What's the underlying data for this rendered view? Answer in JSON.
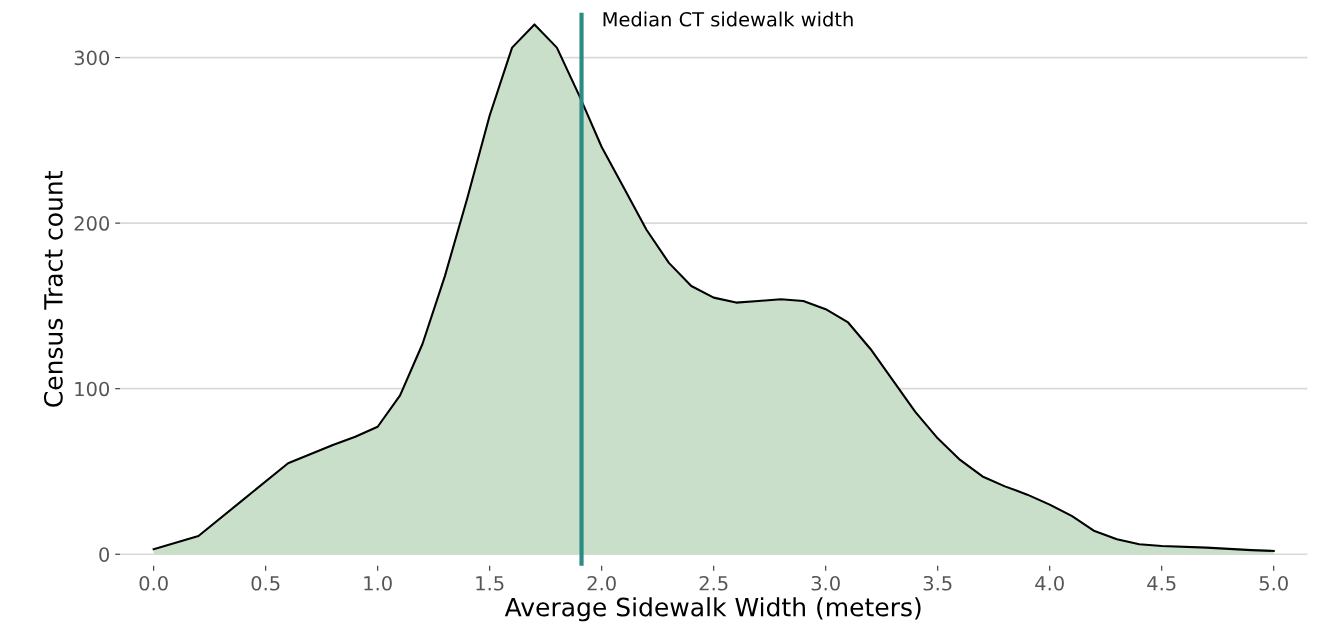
{
  "chart_data": {
    "type": "area",
    "xlabel": "Average Sidewalk Width (meters)",
    "ylabel": "Census Tract count",
    "x": [
      0.0,
      0.2,
      0.4,
      0.6,
      0.8,
      0.9,
      1.0,
      1.1,
      1.2,
      1.3,
      1.4,
      1.5,
      1.6,
      1.7,
      1.8,
      1.9,
      2.0,
      2.1,
      2.2,
      2.3,
      2.4,
      2.5,
      2.6,
      2.7,
      2.8,
      2.9,
      3.0,
      3.1,
      3.2,
      3.3,
      3.4,
      3.5,
      3.6,
      3.7,
      3.8,
      3.9,
      4.0,
      4.1,
      4.2,
      4.3,
      4.4,
      4.5,
      4.7,
      4.9,
      5.0
    ],
    "series": [
      {
        "color": "#c9dfca",
        "values": [
          3,
          11,
          33,
          55,
          66,
          71,
          77,
          96,
          127,
          168,
          215,
          265,
          306,
          320,
          306,
          277,
          246,
          221,
          196,
          176,
          162,
          155,
          152,
          153,
          154,
          153,
          148,
          140,
          124,
          105,
          86,
          70,
          57,
          47,
          41,
          36,
          30,
          23,
          14,
          9,
          6,
          5,
          4,
          2.5,
          2
        ]
      }
    ],
    "xlim": [
      -0.15,
      5.15
    ],
    "ylim": [
      -7,
      327
    ],
    "xticks": [
      {
        "value": 0,
        "label": "0.0"
      },
      {
        "value": 0.5,
        "label": "0.5"
      },
      {
        "value": 1,
        "label": "1.0"
      },
      {
        "value": 1.5,
        "label": "1.5"
      },
      {
        "value": 2,
        "label": "2.0"
      },
      {
        "value": 2.5,
        "label": "2.5"
      },
      {
        "value": 3,
        "label": "3.0"
      },
      {
        "value": 3.5,
        "label": "3.5"
      },
      {
        "value": 4,
        "label": "4.0"
      },
      {
        "value": 4.5,
        "label": "4.5"
      },
      {
        "value": 5,
        "label": "5.0"
      }
    ],
    "yticks": [
      0,
      100,
      200,
      300
    ],
    "grid": "y",
    "ref_lines": [
      {
        "axis": "x",
        "value": 1.91,
        "label": "Median CT sidewalk width",
        "color": "#2a8c82"
      }
    ]
  }
}
